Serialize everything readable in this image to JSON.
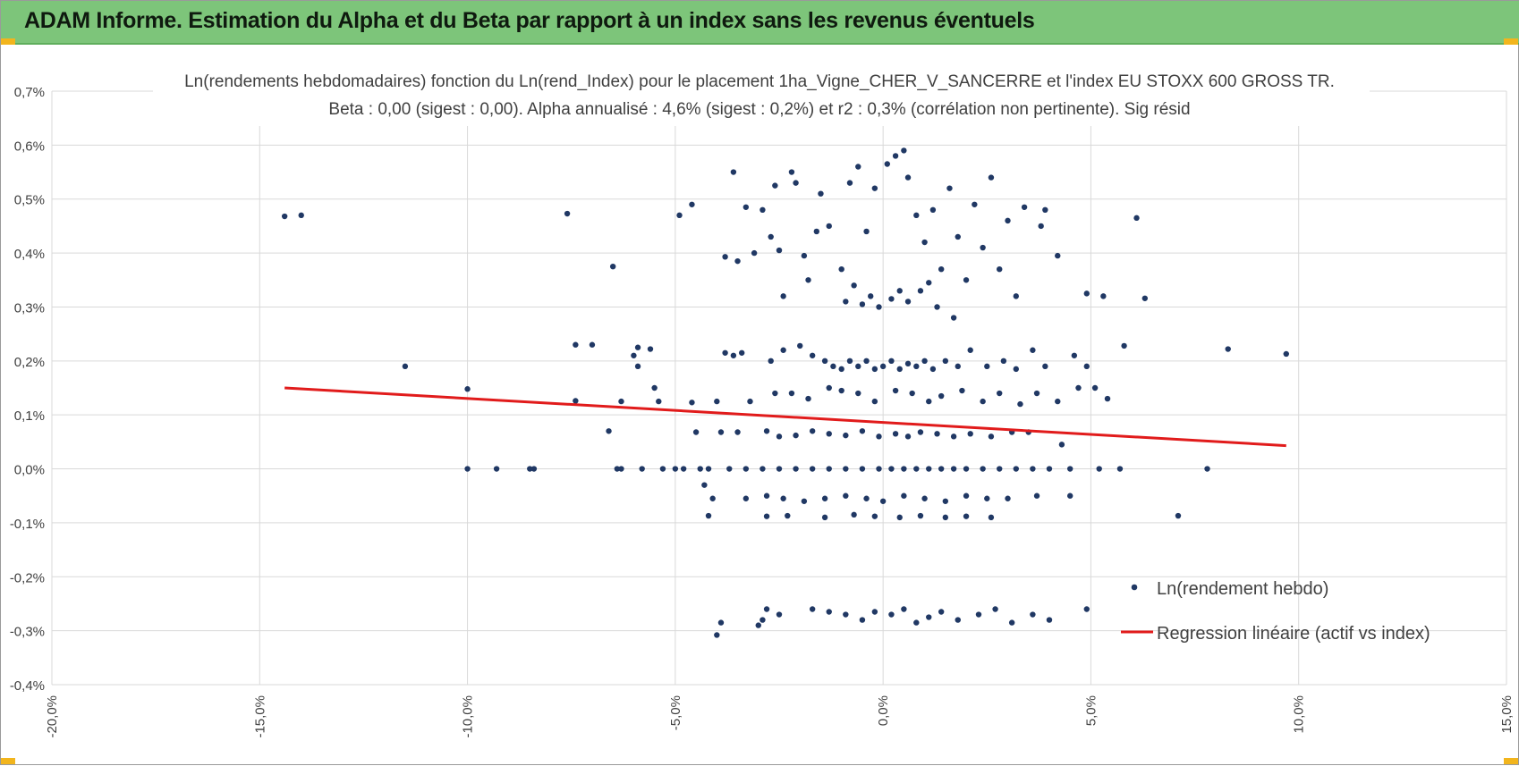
{
  "banner": {
    "title": "ADAM Informe. Estimation du Alpha et du Beta par rapport à un index sans les revenus éventuels"
  },
  "colors": {
    "banner": "#7dc57a",
    "points": "#203864",
    "regression": "#e11b1b",
    "grid": "#d9d9d9",
    "accent_corners": "#f2b51d"
  },
  "chart_data": {
    "type": "scatter",
    "title": "Ln(rendements hebdomadaires) fonction du Ln(rend_Index) pour le placement 1ha_Vigne_CHER_V_SANCERRE et l'index EU STOXX 600 GROSS TR.",
    "subtitle": "Beta : 0,00 (sigest : 0,00). Alpha annualisé : 4,6% (sigest : 0,2%) et r2 : 0,3% (corrélation non pertinente). Sig résid",
    "xlabel": "",
    "ylabel": "",
    "xlim": [
      -20,
      15
    ],
    "ylim": [
      -0.4,
      0.7
    ],
    "x_ticks": [
      "-20,0%",
      "-15,0%",
      "-10,0%",
      "-5,0%",
      "0,0%",
      "5,0%",
      "10,0%",
      "15,0%"
    ],
    "y_ticks": [
      "0,7%",
      "0,6%",
      "0,5%",
      "0,4%",
      "0,3%",
      "0,2%",
      "0,1%",
      "0,0%",
      "-0,1%",
      "-0,2%",
      "-0,3%",
      "-0,4%"
    ],
    "grid": true,
    "legend_position": "bottom-right",
    "series": [
      {
        "name": "Ln(rendement hebdo)",
        "kind": "scatter",
        "color": "#203864",
        "points": [
          [
            -14.4,
            0.468
          ],
          [
            -14.0,
            0.47
          ],
          [
            -11.5,
            0.19
          ],
          [
            -10.0,
            0.148
          ],
          [
            -10.0,
            0.0
          ],
          [
            -9.3,
            0.0
          ],
          [
            -8.5,
            0.0
          ],
          [
            -8.4,
            0.0
          ],
          [
            -7.6,
            0.473
          ],
          [
            -7.4,
            0.23
          ],
          [
            -7.4,
            0.126
          ],
          [
            -7.0,
            0.23
          ],
          [
            -6.6,
            0.07
          ],
          [
            -6.5,
            0.375
          ],
          [
            -6.3,
            0.125
          ],
          [
            -6.3,
            0.0
          ],
          [
            -6.0,
            0.21
          ],
          [
            -5.9,
            0.225
          ],
          [
            -5.9,
            0.19
          ],
          [
            -5.6,
            0.222
          ],
          [
            -5.5,
            0.15
          ],
          [
            -5.4,
            0.125
          ],
          [
            -5.3,
            0.0
          ],
          [
            -5.0,
            0.0
          ],
          [
            -4.9,
            0.47
          ],
          [
            -4.6,
            0.49
          ],
          [
            -4.4,
            0.0
          ],
          [
            -4.3,
            -0.03
          ],
          [
            -4.2,
            -0.087
          ],
          [
            -4.1,
            -0.055
          ],
          [
            -4.0,
            -0.308
          ],
          [
            -3.9,
            -0.285
          ],
          [
            -3.8,
            0.393
          ],
          [
            -3.6,
            0.55
          ],
          [
            -3.5,
            0.385
          ],
          [
            -3.3,
            0.485
          ],
          [
            -3.1,
            0.4
          ],
          [
            -2.9,
            -0.28
          ],
          [
            -2.9,
            0.48
          ],
          [
            -2.8,
            -0.26
          ],
          [
            -2.7,
            0.43
          ],
          [
            -2.6,
            0.525
          ],
          [
            -2.5,
            0.405
          ],
          [
            -2.4,
            0.32
          ],
          [
            -2.2,
            0.55
          ],
          [
            -2.1,
            0.53
          ],
          [
            -1.9,
            0.395
          ],
          [
            -1.8,
            0.35
          ],
          [
            -1.6,
            0.44
          ],
          [
            -1.5,
            0.51
          ],
          [
            -1.3,
            0.45
          ],
          [
            -1.0,
            0.37
          ],
          [
            -0.8,
            0.53
          ],
          [
            -0.6,
            0.56
          ],
          [
            -0.4,
            0.44
          ],
          [
            -0.2,
            0.52
          ],
          [
            0.1,
            0.565
          ],
          [
            0.3,
            0.58
          ],
          [
            0.5,
            0.59
          ],
          [
            0.6,
            0.54
          ],
          [
            0.8,
            0.47
          ],
          [
            1.0,
            0.42
          ],
          [
            1.2,
            0.48
          ],
          [
            1.4,
            0.37
          ],
          [
            1.6,
            0.52
          ],
          [
            1.8,
            0.43
          ],
          [
            2.0,
            0.35
          ],
          [
            2.2,
            0.49
          ],
          [
            2.4,
            0.41
          ],
          [
            2.6,
            0.54
          ],
          [
            2.8,
            0.37
          ],
          [
            3.0,
            0.46
          ],
          [
            3.2,
            0.32
          ],
          [
            3.4,
            0.485
          ],
          [
            3.8,
            0.45
          ],
          [
            3.9,
            0.48
          ],
          [
            4.2,
            0.395
          ],
          [
            4.9,
            0.325
          ],
          [
            5.3,
            0.32
          ],
          [
            6.1,
            0.465
          ],
          [
            6.3,
            0.316
          ],
          [
            -0.9,
            0.31
          ],
          [
            -0.7,
            0.34
          ],
          [
            -0.5,
            0.305
          ],
          [
            -0.3,
            0.32
          ],
          [
            -0.1,
            0.3
          ],
          [
            0.2,
            0.315
          ],
          [
            0.4,
            0.33
          ],
          [
            0.6,
            0.31
          ],
          [
            0.9,
            0.33
          ],
          [
            1.1,
            0.345
          ],
          [
            1.3,
            0.3
          ],
          [
            1.7,
            0.28
          ],
          [
            -3.8,
            0.215
          ],
          [
            -3.6,
            0.21
          ],
          [
            -3.4,
            0.215
          ],
          [
            -2.7,
            0.2
          ],
          [
            -2.4,
            0.22
          ],
          [
            -2.0,
            0.228
          ],
          [
            -1.7,
            0.21
          ],
          [
            -1.4,
            0.2
          ],
          [
            -1.2,
            0.19
          ],
          [
            -1.0,
            0.185
          ],
          [
            -0.8,
            0.2
          ],
          [
            -0.6,
            0.19
          ],
          [
            -0.4,
            0.2
          ],
          [
            -0.2,
            0.185
          ],
          [
            0.0,
            0.19
          ],
          [
            0.2,
            0.2
          ],
          [
            0.4,
            0.185
          ],
          [
            0.6,
            0.195
          ],
          [
            0.8,
            0.19
          ],
          [
            1.0,
            0.2
          ],
          [
            1.2,
            0.185
          ],
          [
            1.5,
            0.2
          ],
          [
            1.8,
            0.19
          ],
          [
            2.1,
            0.22
          ],
          [
            2.5,
            0.19
          ],
          [
            2.9,
            0.2
          ],
          [
            3.2,
            0.185
          ],
          [
            3.6,
            0.22
          ],
          [
            3.9,
            0.19
          ],
          [
            4.6,
            0.21
          ],
          [
            4.9,
            0.19
          ],
          [
            5.8,
            0.228
          ],
          [
            8.3,
            0.222
          ],
          [
            9.7,
            0.213
          ],
          [
            -4.6,
            0.123
          ],
          [
            -4.0,
            0.125
          ],
          [
            -3.2,
            0.125
          ],
          [
            -2.6,
            0.14
          ],
          [
            -2.2,
            0.14
          ],
          [
            -1.8,
            0.13
          ],
          [
            -1.3,
            0.15
          ],
          [
            -1.0,
            0.145
          ],
          [
            -0.6,
            0.14
          ],
          [
            -0.2,
            0.125
          ],
          [
            0.3,
            0.145
          ],
          [
            0.7,
            0.14
          ],
          [
            1.1,
            0.125
          ],
          [
            1.4,
            0.135
          ],
          [
            1.9,
            0.145
          ],
          [
            2.4,
            0.125
          ],
          [
            2.8,
            0.14
          ],
          [
            3.3,
            0.12
          ],
          [
            3.7,
            0.14
          ],
          [
            4.2,
            0.125
          ],
          [
            4.7,
            0.15
          ],
          [
            5.1,
            0.15
          ],
          [
            5.4,
            0.13
          ],
          [
            -4.5,
            0.068
          ],
          [
            -3.9,
            0.068
          ],
          [
            -3.5,
            0.068
          ],
          [
            -2.8,
            0.07
          ],
          [
            -2.5,
            0.06
          ],
          [
            -2.1,
            0.062
          ],
          [
            -1.7,
            0.07
          ],
          [
            -1.3,
            0.065
          ],
          [
            -0.9,
            0.062
          ],
          [
            -0.5,
            0.07
          ],
          [
            -0.1,
            0.06
          ],
          [
            0.3,
            0.065
          ],
          [
            0.6,
            0.06
          ],
          [
            0.9,
            0.068
          ],
          [
            1.3,
            0.065
          ],
          [
            1.7,
            0.06
          ],
          [
            2.1,
            0.065
          ],
          [
            2.6,
            0.06
          ],
          [
            3.1,
            0.068
          ],
          [
            3.5,
            0.068
          ],
          [
            4.3,
            0.045
          ],
          [
            -6.4,
            0.0
          ],
          [
            -5.8,
            0.0
          ],
          [
            -4.8,
            0.0
          ],
          [
            -4.2,
            0.0
          ],
          [
            -3.7,
            0.0
          ],
          [
            -3.3,
            0.0
          ],
          [
            -2.9,
            0.0
          ],
          [
            -2.5,
            0.0
          ],
          [
            -2.1,
            0.0
          ],
          [
            -1.7,
            0.0
          ],
          [
            -1.3,
            0.0
          ],
          [
            -0.9,
            0.0
          ],
          [
            -0.5,
            0.0
          ],
          [
            -0.1,
            0.0
          ],
          [
            0.2,
            0.0
          ],
          [
            0.5,
            0.0
          ],
          [
            0.8,
            0.0
          ],
          [
            1.1,
            0.0
          ],
          [
            1.4,
            0.0
          ],
          [
            1.7,
            0.0
          ],
          [
            2.0,
            0.0
          ],
          [
            2.4,
            0.0
          ],
          [
            2.8,
            0.0
          ],
          [
            3.2,
            0.0
          ],
          [
            3.6,
            0.0
          ],
          [
            4.0,
            0.0
          ],
          [
            4.5,
            0.0
          ],
          [
            5.2,
            0.0
          ],
          [
            5.7,
            0.0
          ],
          [
            7.8,
            0.0
          ],
          [
            -3.3,
            -0.055
          ],
          [
            -2.8,
            -0.05
          ],
          [
            -2.4,
            -0.055
          ],
          [
            -1.9,
            -0.06
          ],
          [
            -1.4,
            -0.055
          ],
          [
            -0.9,
            -0.05
          ],
          [
            -0.4,
            -0.055
          ],
          [
            0.0,
            -0.06
          ],
          [
            0.5,
            -0.05
          ],
          [
            1.0,
            -0.055
          ],
          [
            1.5,
            -0.06
          ],
          [
            2.0,
            -0.05
          ],
          [
            2.5,
            -0.055
          ],
          [
            3.0,
            -0.055
          ],
          [
            3.7,
            -0.05
          ],
          [
            4.5,
            -0.05
          ],
          [
            -2.8,
            -0.088
          ],
          [
            -2.3,
            -0.087
          ],
          [
            -1.4,
            -0.09
          ],
          [
            -0.7,
            -0.085
          ],
          [
            -0.2,
            -0.088
          ],
          [
            0.4,
            -0.09
          ],
          [
            0.9,
            -0.087
          ],
          [
            1.5,
            -0.09
          ],
          [
            2.0,
            -0.088
          ],
          [
            2.6,
            -0.09
          ],
          [
            7.1,
            -0.087
          ],
          [
            -3.0,
            -0.29
          ],
          [
            -2.5,
            -0.27
          ],
          [
            -1.7,
            -0.26
          ],
          [
            -1.3,
            -0.265
          ],
          [
            -0.9,
            -0.27
          ],
          [
            -0.5,
            -0.28
          ],
          [
            -0.2,
            -0.265
          ],
          [
            0.2,
            -0.27
          ],
          [
            0.5,
            -0.26
          ],
          [
            0.8,
            -0.285
          ],
          [
            1.1,
            -0.275
          ],
          [
            1.4,
            -0.265
          ],
          [
            1.8,
            -0.28
          ],
          [
            2.3,
            -0.27
          ],
          [
            2.7,
            -0.26
          ],
          [
            3.1,
            -0.285
          ],
          [
            3.6,
            -0.27
          ],
          [
            4.0,
            -0.28
          ],
          [
            4.9,
            -0.26
          ]
        ]
      },
      {
        "name": "Regression linéaire (actif vs index)",
        "kind": "line",
        "color": "#e11b1b",
        "points": [
          [
            -14.4,
            0.15
          ],
          [
            9.7,
            0.043
          ]
        ]
      }
    ]
  }
}
